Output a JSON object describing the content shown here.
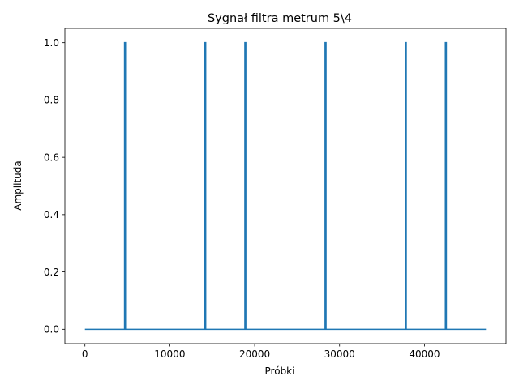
{
  "chart_data": {
    "type": "line",
    "title": "Sygnał filtra metrum 5\\4",
    "xlabel": "Próbki",
    "ylabel": "Amplituda",
    "xlim": [
      -2360,
      49610
    ],
    "ylim": [
      -0.05,
      1.05
    ],
    "xticks": [
      0,
      10000,
      20000,
      30000,
      40000
    ],
    "yticks": [
      0.0,
      0.2,
      0.4,
      0.6,
      0.8,
      1.0
    ],
    "xtick_labels": [
      "0",
      "10000",
      "20000",
      "30000",
      "40000"
    ],
    "ytick_labels": [
      "0.0",
      "0.2",
      "0.4",
      "0.6",
      "0.8",
      "1.0"
    ],
    "grid": false,
    "line_color": "#1f77b4",
    "x_range": [
      0,
      47250
    ],
    "baseline": 0.0,
    "impulses": [
      {
        "x": 4725,
        "y": 1.0
      },
      {
        "x": 14175,
        "y": 1.0
      },
      {
        "x": 18900,
        "y": 1.0
      },
      {
        "x": 28350,
        "y": 1.0
      },
      {
        "x": 37800,
        "y": 1.0
      },
      {
        "x": 42525,
        "y": 1.0
      }
    ]
  }
}
